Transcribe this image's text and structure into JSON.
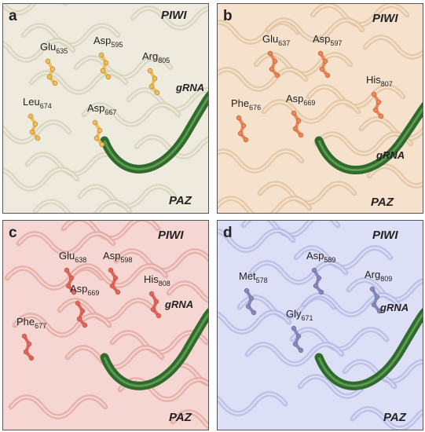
{
  "panels": [
    {
      "letter": "a",
      "piwi": "PIWI",
      "grna": "gRNA",
      "paz": "PAZ",
      "residues": [
        {
          "name": "Glu",
          "sub": "635"
        },
        {
          "name": "Asp",
          "sub": "595"
        },
        {
          "name": "Arg",
          "sub": "805"
        },
        {
          "name": "Leu",
          "sub": "674"
        },
        {
          "name": "Asp",
          "sub": "667"
        }
      ]
    },
    {
      "letter": "b",
      "piwi": "PIWI",
      "grna": "gRNA",
      "paz": "PAZ",
      "residues": [
        {
          "name": "Glu",
          "sub": "637"
        },
        {
          "name": "Asp",
          "sub": "597"
        },
        {
          "name": "His",
          "sub": "807"
        },
        {
          "name": "Phe",
          "sub": "676"
        },
        {
          "name": "Asp",
          "sub": "669"
        }
      ]
    },
    {
      "letter": "c",
      "piwi": "PIWI",
      "grna": "gRNA",
      "paz": "PAZ",
      "residues": [
        {
          "name": "Glu",
          "sub": "638"
        },
        {
          "name": "Asp",
          "sub": "598"
        },
        {
          "name": "His",
          "sub": "808"
        },
        {
          "name": "Phe",
          "sub": "677"
        },
        {
          "name": "Asp",
          "sub": "669"
        }
      ]
    },
    {
      "letter": "d",
      "piwi": "PIWI",
      "grna": "gRNA",
      "paz": "PAZ",
      "residues": [
        {
          "name": "Met",
          "sub": "578"
        },
        {
          "name": "Asp",
          "sub": "589"
        },
        {
          "name": "Arg",
          "sub": "809"
        },
        {
          "name": "Gly",
          "sub": "671"
        }
      ]
    }
  ]
}
